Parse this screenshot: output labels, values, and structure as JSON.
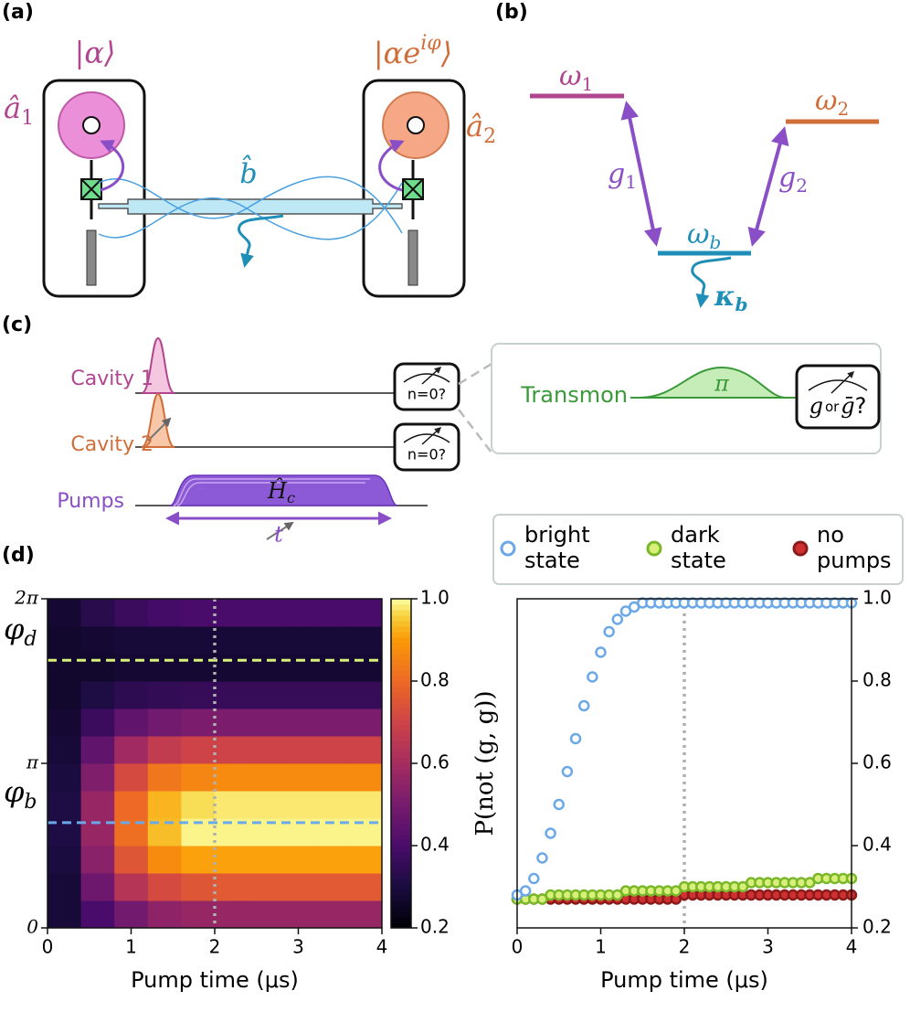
{
  "panel_labels": [
    "(a)",
    "(b)",
    "(c)",
    "(d)"
  ],
  "panel_a": {
    "state_1": "|α⟩",
    "state_2": {
      "main": "|αe",
      "sup": "iφ",
      "end": "⟩"
    },
    "mode_1": {
      "main": "â",
      "sub": "1"
    },
    "mode_2": {
      "main": "â",
      "sub": "2"
    },
    "bus": "b̂"
  },
  "panel_b": {
    "level_1": {
      "main": "ω",
      "sub": "1"
    },
    "level_2": {
      "main": "ω",
      "sub": "2"
    },
    "level_b": {
      "main": "ω",
      "sub": "b"
    },
    "coupling_1": {
      "main": "g",
      "sub": "1"
    },
    "coupling_2": {
      "main": "g",
      "sub": "2"
    },
    "decay": {
      "main": "κ",
      "sub": "b"
    }
  },
  "panel_c": {
    "rows": [
      "Cavity 1",
      "Cavity 2",
      "Pumps"
    ],
    "measure": "n=0?",
    "hamiltonian": {
      "main": "Ĥ",
      "sub": "c"
    },
    "duration": "t",
    "transmon": "Transmon",
    "pulse": "π",
    "readout": {
      "a": "g",
      "or": "or",
      "b": "ḡ",
      "q": "?"
    }
  },
  "chart_data": [
    {
      "type": "heatmap",
      "colormap": "inferno",
      "xbins": [
        0,
        0.4,
        0.8,
        1.2,
        1.6,
        2.0,
        2.4,
        2.8,
        3.2,
        3.6,
        4.0
      ],
      "ybins": [
        0,
        0.524,
        1.047,
        1.571,
        2.094,
        2.618,
        3.142,
        3.665,
        4.189,
        4.712,
        5.236,
        5.76,
        6.283
      ],
      "z": [
        [
          0.29,
          0.4,
          0.49,
          0.55,
          0.57,
          0.57,
          0.57,
          0.57,
          0.57,
          0.57
        ],
        [
          0.29,
          0.48,
          0.64,
          0.72,
          0.75,
          0.76,
          0.76,
          0.76,
          0.76,
          0.76
        ],
        [
          0.3,
          0.54,
          0.75,
          0.87,
          0.91,
          0.91,
          0.91,
          0.91,
          0.91,
          0.91
        ],
        [
          0.31,
          0.57,
          0.81,
          0.94,
          0.99,
          0.99,
          0.99,
          0.99,
          0.99,
          0.99
        ],
        [
          0.31,
          0.57,
          0.8,
          0.93,
          0.97,
          0.98,
          0.98,
          0.98,
          0.98,
          0.98
        ],
        [
          0.3,
          0.52,
          0.72,
          0.83,
          0.86,
          0.87,
          0.87,
          0.87,
          0.87,
          0.87
        ],
        [
          0.29,
          0.45,
          0.59,
          0.67,
          0.7,
          0.7,
          0.7,
          0.7,
          0.7,
          0.7
        ],
        [
          0.28,
          0.37,
          0.45,
          0.49,
          0.51,
          0.51,
          0.51,
          0.51,
          0.51,
          0.51
        ],
        [
          0.27,
          0.31,
          0.34,
          0.35,
          0.36,
          0.36,
          0.36,
          0.36,
          0.36,
          0.36
        ],
        [
          0.27,
          0.27,
          0.28,
          0.28,
          0.28,
          0.28,
          0.28,
          0.28,
          0.28,
          0.28
        ],
        [
          0.27,
          0.28,
          0.29,
          0.29,
          0.29,
          0.29,
          0.29,
          0.29,
          0.29,
          0.29
        ],
        [
          0.28,
          0.33,
          0.37,
          0.39,
          0.4,
          0.4,
          0.4,
          0.4,
          0.4,
          0.4
        ]
      ],
      "xlim": [
        0,
        4
      ],
      "ylim": [
        0,
        6.2832
      ],
      "xticks": [
        0,
        1,
        2,
        3,
        4
      ],
      "yticks": [
        0,
        {
          "value": 3.1416,
          "label": "π"
        },
        {
          "value": 6.2832,
          "label": "2π"
        }
      ],
      "xlabel": "Pump time (μs)",
      "clim": [
        0.2,
        1.0
      ],
      "cticks": [
        0.2,
        0.4,
        0.6,
        0.8,
        {
          "value": 1.0,
          "label": "1.0"
        }
      ],
      "hlines": [
        {
          "value": 5.11,
          "label": "φd",
          "color": "#d8f07a"
        },
        {
          "value": 2.01,
          "label": "φb",
          "color": "#6ba8e8"
        }
      ],
      "vline": {
        "value": 2,
        "color": "#b0b0b0"
      }
    },
    {
      "type": "scatter",
      "x": [
        0,
        0.1,
        0.2,
        0.3,
        0.4,
        0.5,
        0.6,
        0.7,
        0.8,
        0.9,
        1.0,
        1.1,
        1.2,
        1.3,
        1.4,
        1.5,
        1.6,
        1.7,
        1.8,
        1.9,
        2.0,
        2.1,
        2.2,
        2.3,
        2.4,
        2.5,
        2.6,
        2.7,
        2.8,
        2.9,
        3.0,
        3.1,
        3.2,
        3.3,
        3.4,
        3.5,
        3.6,
        3.7,
        3.8,
        3.9,
        4.0
      ],
      "series": [
        {
          "name": "bright state",
          "color": "#6ba8e8",
          "fill": "#ffffff",
          "values": [
            0.28,
            0.29,
            0.32,
            0.37,
            0.43,
            0.5,
            0.58,
            0.66,
            0.74,
            0.81,
            0.87,
            0.92,
            0.95,
            0.97,
            0.98,
            0.99,
            0.99,
            0.99,
            0.99,
            0.99,
            0.99,
            0.99,
            0.99,
            0.99,
            0.99,
            0.99,
            0.99,
            0.99,
            0.99,
            0.99,
            0.99,
            0.99,
            0.99,
            0.99,
            0.99,
            0.99,
            0.99,
            0.99,
            0.99,
            0.99,
            0.99
          ]
        },
        {
          "name": "dark state",
          "color": "#7ab82a",
          "fill": "#d8f07a",
          "values": [
            0.27,
            0.27,
            0.27,
            0.27,
            0.28,
            0.28,
            0.28,
            0.28,
            0.28,
            0.28,
            0.28,
            0.28,
            0.28,
            0.29,
            0.29,
            0.29,
            0.29,
            0.29,
            0.29,
            0.29,
            0.3,
            0.3,
            0.3,
            0.3,
            0.3,
            0.3,
            0.3,
            0.3,
            0.31,
            0.31,
            0.31,
            0.31,
            0.31,
            0.31,
            0.31,
            0.31,
            0.32,
            0.32,
            0.32,
            0.32,
            0.32
          ]
        },
        {
          "name": "no pumps",
          "color": "#8b1a1a",
          "fill": "#d03030",
          "values": [
            0.27,
            0.27,
            0.27,
            0.27,
            0.27,
            0.27,
            0.27,
            0.27,
            0.27,
            0.27,
            0.27,
            0.27,
            0.27,
            0.27,
            0.27,
            0.27,
            0.27,
            0.27,
            0.27,
            0.27,
            0.28,
            0.28,
            0.28,
            0.28,
            0.28,
            0.28,
            0.28,
            0.28,
            0.28,
            0.28,
            0.28,
            0.28,
            0.28,
            0.28,
            0.28,
            0.28,
            0.28,
            0.28,
            0.28,
            0.28,
            0.28
          ]
        }
      ],
      "xlim": [
        0,
        4
      ],
      "ylim": [
        0.2,
        1.0
      ],
      "xticks": [
        0,
        1,
        2,
        3,
        4
      ],
      "yticks": [
        0.2,
        0.4,
        0.6,
        0.8,
        {
          "value": 1.0,
          "label": "1.0"
        }
      ],
      "xlabel": "Pump time (μs)",
      "ylabel": "P(not (g, g))",
      "vline": {
        "value": 2,
        "color": "#b0b0b0"
      },
      "legend": "top"
    }
  ]
}
